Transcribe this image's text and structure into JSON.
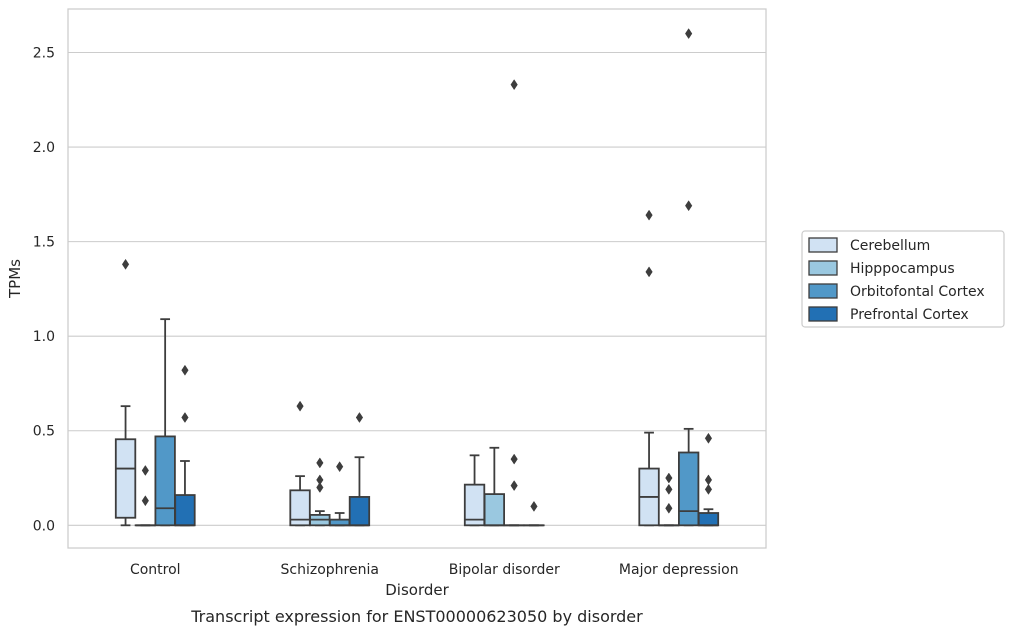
{
  "chart_data": {
    "type": "box",
    "xlabel": "Disorder",
    "ylabel": "TPMs",
    "caption": "Transcript expression for ENST00000623050 by disorder",
    "ylim": [
      -0.12,
      2.73
    ],
    "yticks": [
      "0.0",
      "0.5",
      "1.0",
      "1.5",
      "2.0",
      "2.5"
    ],
    "grid": true,
    "legend_position": "right",
    "categories": [
      "Control",
      "Schizophrenia",
      "Bipolar disorder",
      "Major depression"
    ],
    "series": [
      {
        "name": "Cerebellum",
        "color": "#d1e2f3",
        "boxes": [
          {
            "whisker_low": 0.0,
            "q1": 0.04,
            "median": 0.3,
            "q3": 0.455,
            "whisker_high": 0.63,
            "outliers": [
              1.38
            ]
          },
          {
            "whisker_low": 0.0,
            "q1": 0.0,
            "median": 0.03,
            "q3": 0.185,
            "whisker_high": 0.26,
            "outliers": [
              0.63
            ]
          },
          {
            "whisker_low": 0.0,
            "q1": 0.0,
            "median": 0.03,
            "q3": 0.215,
            "whisker_high": 0.37,
            "outliers": []
          },
          {
            "whisker_low": 0.0,
            "q1": 0.0,
            "median": 0.15,
            "q3": 0.3,
            "whisker_high": 0.49,
            "outliers": [
              1.34,
              1.64
            ]
          }
        ]
      },
      {
        "name": "Hipppocampus",
        "color": "#9ac8e0",
        "boxes": [
          {
            "whisker_low": 0.0,
            "q1": 0.0,
            "median": 0.0,
            "q3": 0.0,
            "whisker_high": 0.0,
            "outliers": [
              0.13,
              0.29
            ]
          },
          {
            "whisker_low": 0.0,
            "q1": 0.0,
            "median": 0.03,
            "q3": 0.055,
            "whisker_high": 0.075,
            "outliers": [
              0.2,
              0.24,
              0.33
            ]
          },
          {
            "whisker_low": 0.0,
            "q1": 0.0,
            "median": 0.0,
            "q3": 0.165,
            "whisker_high": 0.41,
            "outliers": []
          },
          {
            "whisker_low": 0.0,
            "q1": 0.0,
            "median": 0.0,
            "q3": 0.0,
            "whisker_high": 0.0,
            "outliers": [
              0.09,
              0.19,
              0.25
            ]
          }
        ]
      },
      {
        "name": "Orbitofontal Cortex",
        "color": "#5198c8",
        "boxes": [
          {
            "whisker_low": 0.0,
            "q1": 0.0,
            "median": 0.09,
            "q3": 0.47,
            "whisker_high": 1.09,
            "outliers": []
          },
          {
            "whisker_low": 0.0,
            "q1": 0.0,
            "median": 0.0,
            "q3": 0.03,
            "whisker_high": 0.065,
            "outliers": [
              0.31
            ]
          },
          {
            "whisker_low": 0.0,
            "q1": 0.0,
            "median": 0.0,
            "q3": 0.0,
            "whisker_high": 0.0,
            "outliers": [
              0.21,
              0.35,
              2.33
            ]
          },
          {
            "whisker_low": 0.0,
            "q1": 0.0,
            "median": 0.075,
            "q3": 0.385,
            "whisker_high": 0.51,
            "outliers": [
              1.69,
              2.6
            ]
          }
        ]
      },
      {
        "name": "Prefrontal Cortex",
        "color": "#2270b4",
        "boxes": [
          {
            "whisker_low": 0.0,
            "q1": 0.0,
            "median": 0.0,
            "q3": 0.16,
            "whisker_high": 0.34,
            "outliers": [
              0.57,
              0.82
            ]
          },
          {
            "whisker_low": 0.0,
            "q1": 0.0,
            "median": 0.0,
            "q3": 0.15,
            "whisker_high": 0.36,
            "outliers": [
              0.57
            ]
          },
          {
            "whisker_low": 0.0,
            "q1": 0.0,
            "median": 0.0,
            "q3": 0.0,
            "whisker_high": 0.0,
            "outliers": [
              0.1
            ]
          },
          {
            "whisker_low": 0.0,
            "q1": 0.0,
            "median": 0.0,
            "q3": 0.065,
            "whisker_high": 0.085,
            "outliers": [
              0.19,
              0.24,
              0.46
            ]
          }
        ]
      }
    ]
  }
}
